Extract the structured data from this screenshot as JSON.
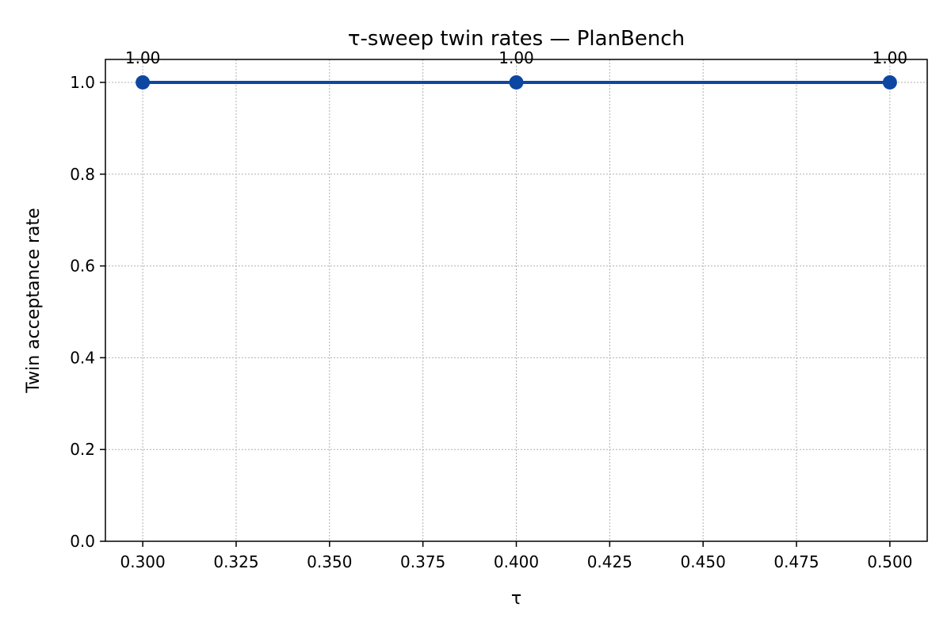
{
  "chart_data": {
    "type": "line",
    "title": "τ-sweep twin rates — PlanBench",
    "xlabel": "τ",
    "ylabel": "Twin acceptance rate",
    "xlim": [
      0.29,
      0.51
    ],
    "ylim": [
      0.0,
      1.05
    ],
    "x_ticks": [
      0.3,
      0.325,
      0.35,
      0.375,
      0.4,
      0.425,
      0.45,
      0.475,
      0.5
    ],
    "x_tick_labels": [
      "0.300",
      "0.325",
      "0.350",
      "0.375",
      "0.400",
      "0.425",
      "0.450",
      "0.475",
      "0.500"
    ],
    "y_ticks": [
      0.0,
      0.2,
      0.4,
      0.6,
      0.8,
      1.0
    ],
    "y_tick_labels": [
      "0.0",
      "0.2",
      "0.4",
      "0.6",
      "0.8",
      "1.0"
    ],
    "grid": true,
    "series": [
      {
        "x": [
          0.3,
          0.4,
          0.5
        ],
        "y": [
          1.0,
          1.0,
          1.0
        ],
        "data_labels": [
          "1.00",
          "1.00",
          "1.00"
        ],
        "color": "#0d47a1",
        "marker": "circle"
      }
    ]
  }
}
